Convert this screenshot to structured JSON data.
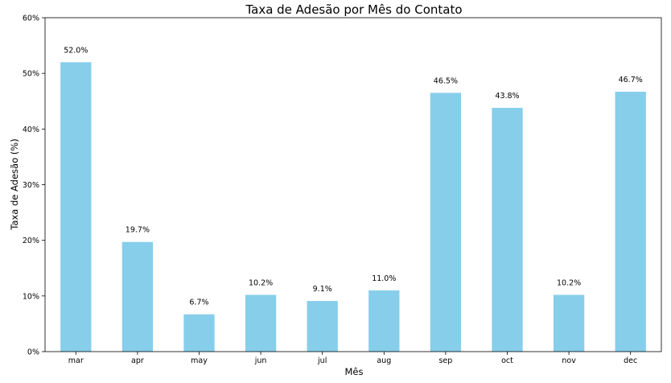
{
  "chart_data": {
    "type": "bar",
    "title": "Taxa de Adesão por Mês do Contato",
    "xlabel": "Mês",
    "ylabel": "Taxa de Adesão (%)",
    "categories": [
      "mar",
      "apr",
      "may",
      "jun",
      "jul",
      "aug",
      "sep",
      "oct",
      "nov",
      "dec"
    ],
    "values": [
      52.0,
      19.7,
      6.7,
      10.2,
      9.1,
      11.0,
      46.5,
      43.8,
      10.2,
      46.7
    ],
    "data_labels": [
      "52.0%",
      "19.7%",
      "6.7%",
      "10.2%",
      "9.1%",
      "11.0%",
      "46.5%",
      "43.8%",
      "10.2%",
      "46.7%"
    ],
    "ylim": [
      0,
      60
    ],
    "yticks": [
      0,
      10,
      20,
      30,
      40,
      50,
      60
    ],
    "ytick_labels": [
      "0%",
      "10%",
      "20%",
      "30%",
      "40%",
      "50%",
      "60%"
    ],
    "bar_color": "#87ceeb",
    "grid": false,
    "legend": "none"
  }
}
